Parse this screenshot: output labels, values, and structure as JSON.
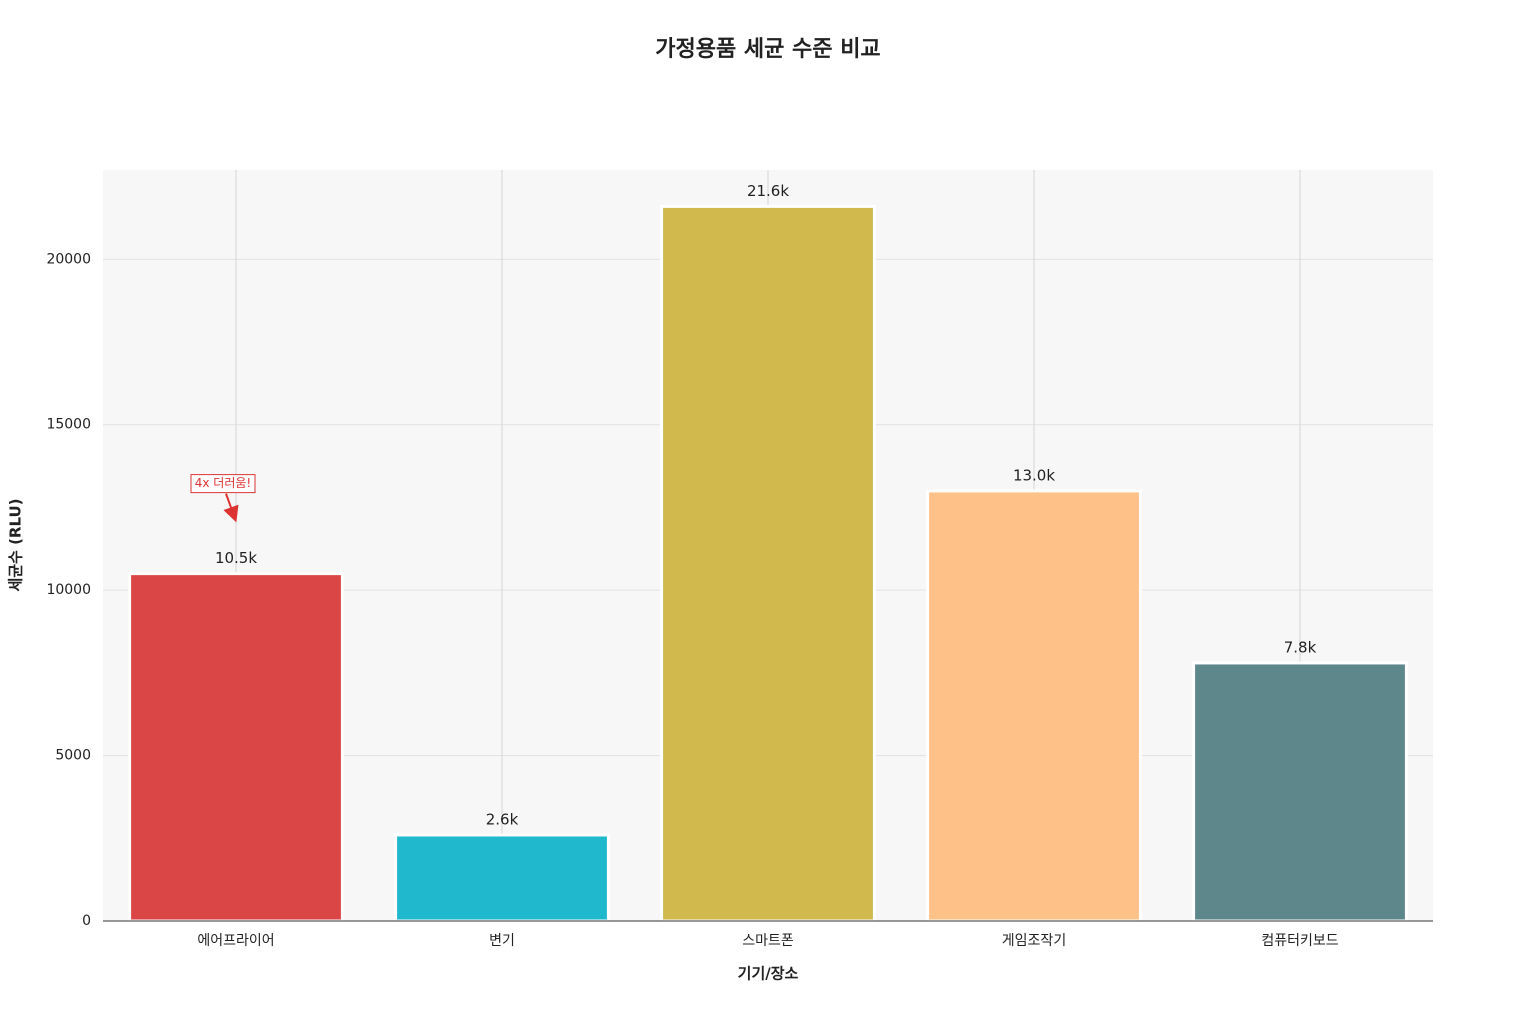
{
  "chart_data": {
    "type": "bar",
    "title": "가정용품 세균 수준 비교",
    "x_label": "기기/장소",
    "y_label": "세균수 (RLU)",
    "categories": [
      "에어프라이어",
      "변기",
      "스마트폰",
      "게임조작기",
      "컴퓨터키보드"
    ],
    "values": [
      10500,
      2600,
      21600,
      13000,
      7800
    ],
    "value_labels": [
      "10.5k",
      "2.6k",
      "21.6k",
      "13.0k",
      "7.8k"
    ],
    "colors": [
      "#da4545",
      "#20b8cc",
      "#d2b94e",
      "#fec187",
      "#5e878c"
    ],
    "ylim": [
      0,
      22700
    ],
    "yticks": [
      0,
      5000,
      10000,
      15000,
      20000
    ],
    "grid": true,
    "annotation": "4x 더러움!"
  }
}
